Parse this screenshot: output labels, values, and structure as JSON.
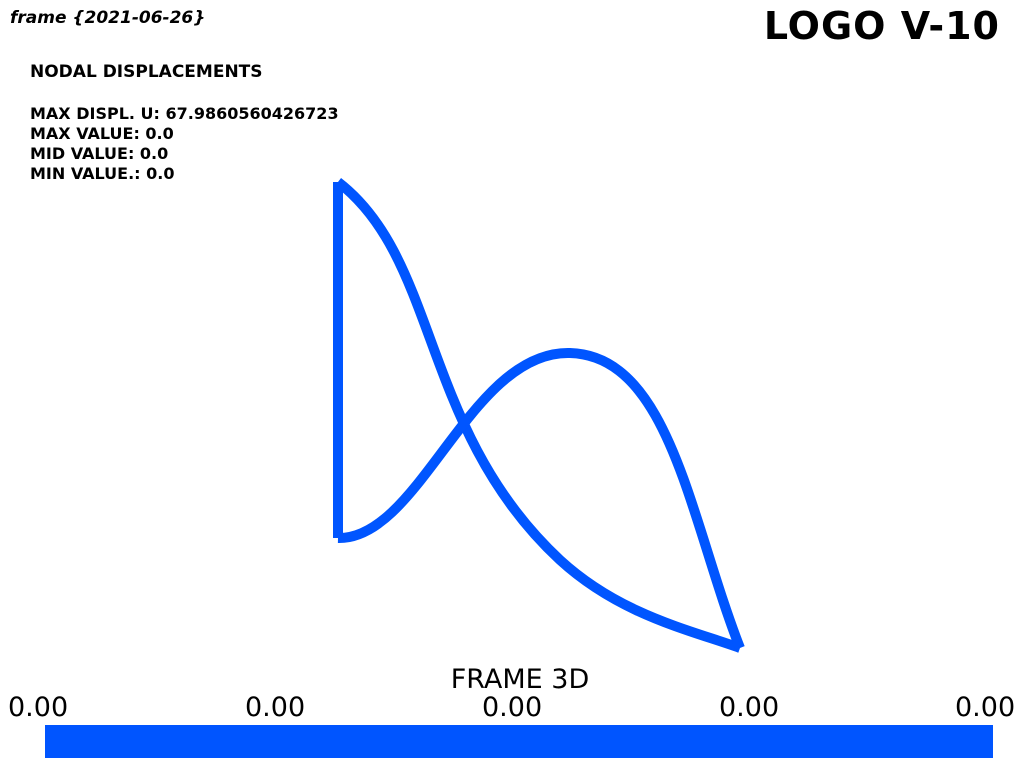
{
  "frame_title": "frame {2021-06-26}",
  "logo": "LOGO V-10",
  "results": {
    "heading": "NODAL DISPLACEMENTS",
    "max_displ": "MAX DISPL. U: 67.9860560426723",
    "max_value": "MAX VALUE: 0.0",
    "mid_value": "MID VALUE: 0.0",
    "min_value": "MIN VALUE.: 0.0"
  },
  "scalar_bar": {
    "title": "FRAME 3D",
    "ticks": [
      "0.00",
      "0.00",
      "0.00",
      "0.00",
      "0.00"
    ],
    "color": "#0055ff"
  },
  "model": {
    "line_color": "#0055ff",
    "icon": "deformed-frame-mesh"
  }
}
